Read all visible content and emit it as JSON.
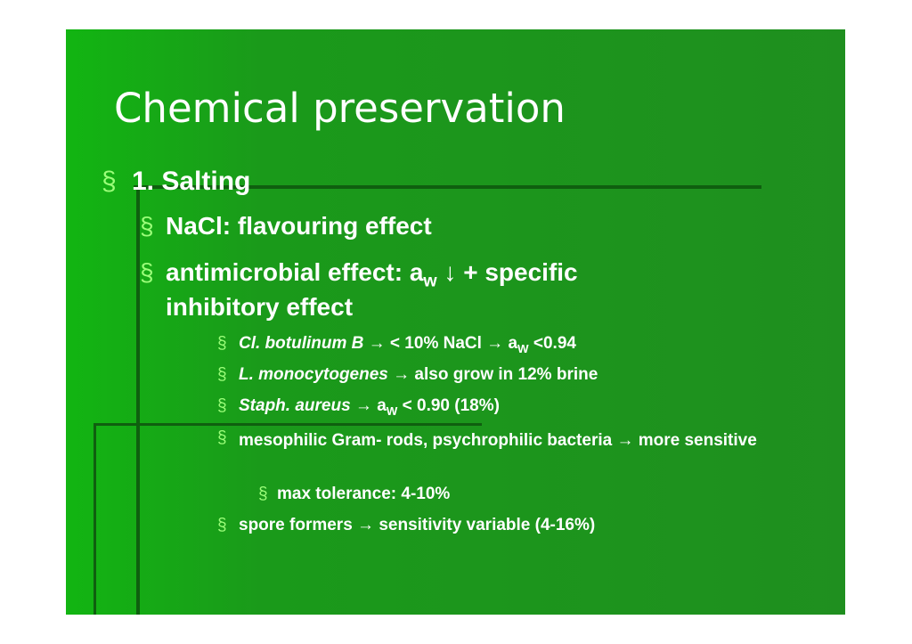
{
  "title": "Chemical preservation",
  "bullet_symbol": "§",
  "items": [
    {
      "parts": [
        "1. Salting"
      ]
    },
    {
      "parts": [
        "NaCl: flavouring effect"
      ]
    },
    {
      "parts": [
        "antimicrobial effect: a",
        "w",
        " ↓ + specific inhibitory effect"
      ]
    },
    {
      "parts": [
        "Cl. botulinum B",
        " → < 10% NaCl → a",
        "W",
        " <0.94"
      ]
    },
    {
      "parts": [
        "L. monocytogenes",
        " → also grow in 12% brine"
      ]
    },
    {
      "parts": [
        "Staph. aureus",
        " → a",
        "W",
        " < 0.90 (18%)"
      ]
    },
    {
      "parts": [
        "mesophilic Gram- rods, psychrophilic bacteria → more sensitive"
      ]
    },
    {
      "parts": [
        "max tolerance: 4-10%"
      ]
    },
    {
      "parts": [
        "spore formers → sensitivity variable (4-16%)"
      ]
    }
  ]
}
